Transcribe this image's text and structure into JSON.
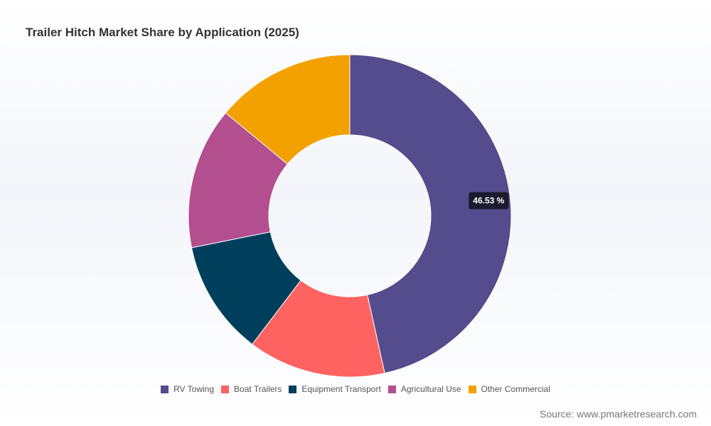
{
  "chart_data": {
    "type": "pie",
    "variant": "donut",
    "title": "Trailer Hitch Market Share by Application (2025)",
    "categories": [
      "RV Towing",
      "Boat Trailers",
      "Equipment Transport",
      "Agricultural Use",
      "Other Commercial"
    ],
    "values": [
      46.53,
      13.8,
      11.5,
      14.2,
      13.97
    ],
    "value_unit": "%",
    "colors": [
      "#544c8c",
      "#ff6361",
      "#003f5c",
      "#b34e8f",
      "#f2a100"
    ],
    "highlight": {
      "index": 0,
      "label": "46.53 %"
    },
    "legend_position": "bottom"
  },
  "source": "Source: www.pmarketresearch.com"
}
